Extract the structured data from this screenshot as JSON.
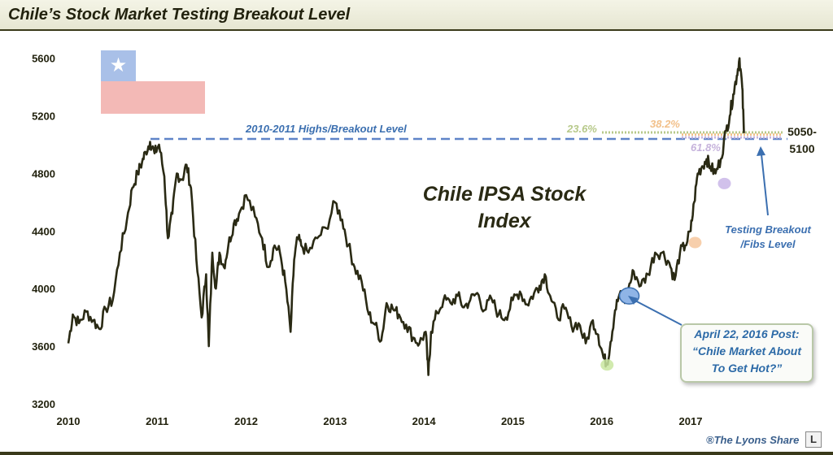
{
  "header": {
    "title": "Chile’s Stock Market Testing Breakout Level"
  },
  "flag": {
    "star_glyph": "★",
    "colors": {
      "blue": "#a9c0e8",
      "white": "#ffffff",
      "red": "#f3b9b6"
    }
  },
  "annotations": {
    "breakout_label": "2010-2011 Highs/Breakout  Level",
    "index_label_line1": "Chile IPSA Stock",
    "index_label_line2": "Index",
    "fib_236": "23.6%",
    "fib_382": "38.2%",
    "fib_618": "61.8%",
    "level_line1": "5050-",
    "level_line2": "5100",
    "testing_line1": "Testing Breakout",
    "testing_line2": "/Fibs Level",
    "callout_line1": "April 22, 2016 Post:",
    "callout_line2": "“Chile Market About",
    "callout_line3": "To Get Hot?”"
  },
  "footer": {
    "credit": "®The Lyons Share",
    "logo": "L"
  },
  "colors": {
    "line": "#2a2a14",
    "breakout_dash": "#5f84c8",
    "fib_236": "#b7c98a",
    "fib_382": "#f2c08a",
    "fib_618": "#c6b3dc",
    "blue_text": "#3b6fb0",
    "title_text": "#22220e"
  },
  "chart_data": {
    "type": "line",
    "title": "Chile IPSA Stock Index",
    "xlabel": "",
    "ylabel": "",
    "xlim": [
      2010.0,
      2017.65
    ],
    "ylim": [
      3200,
      5700
    ],
    "y_ticks": [
      "3200",
      "3600",
      "4000",
      "4400",
      "4800",
      "5200",
      "5600"
    ],
    "x_ticks": [
      "2010",
      "2011",
      "2012",
      "2013",
      "2014",
      "2015",
      "2016",
      "2017"
    ],
    "series": [
      {
        "name": "IPSA",
        "x": [
          2010.0,
          2010.05,
          2010.12,
          2010.2,
          2010.28,
          2010.35,
          2010.42,
          2010.5,
          2010.58,
          2010.66,
          2010.72,
          2010.78,
          2010.83,
          2010.87,
          2010.92,
          2010.97,
          2011.02,
          2011.08,
          2011.12,
          2011.17,
          2011.22,
          2011.28,
          2011.33,
          2011.38,
          2011.44,
          2011.5,
          2011.55,
          2011.58,
          2011.62,
          2011.66,
          2011.7,
          2011.75,
          2011.8,
          2011.86,
          2011.92,
          2012.0,
          2012.1,
          2012.18,
          2012.25,
          2012.32,
          2012.38,
          2012.44,
          2012.5,
          2012.54,
          2012.58,
          2012.62,
          2012.7,
          2012.8,
          2012.9,
          2013.0,
          2013.08,
          2013.15,
          2013.22,
          2013.3,
          2013.38,
          2013.45,
          2013.52,
          2013.58,
          2013.65,
          2013.72,
          2013.8,
          2013.88,
          2013.95,
          2014.02,
          2014.05,
          2014.08,
          2014.15,
          2014.22,
          2014.3,
          2014.38,
          2014.45,
          2014.52,
          2014.6,
          2014.68,
          2014.76,
          2014.84,
          2014.92,
          2015.0,
          2015.08,
          2015.16,
          2015.24,
          2015.3,
          2015.36,
          2015.42,
          2015.5,
          2015.58,
          2015.66,
          2015.74,
          2015.82,
          2015.9,
          2015.96,
          2016.02,
          2016.06,
          2016.1,
          2016.15,
          2016.2,
          2016.26,
          2016.3,
          2016.36,
          2016.44,
          2016.52,
          2016.6,
          2016.68,
          2016.76,
          2016.82,
          2016.88,
          2016.94,
          2017.0,
          2017.04,
          2017.08,
          2017.13,
          2017.18,
          2017.22,
          2017.28,
          2017.34,
          2017.4,
          2017.44,
          2017.48,
          2017.52,
          2017.55,
          2017.58,
          2017.6
        ],
        "values": [
          3620,
          3820,
          3760,
          3840,
          3780,
          3720,
          3860,
          3920,
          4250,
          4480,
          4700,
          4800,
          4880,
          4950,
          5020,
          4940,
          5000,
          4780,
          4350,
          4520,
          4800,
          4760,
          4860,
          4700,
          4200,
          3800,
          4100,
          3600,
          4250,
          4000,
          4250,
          4150,
          4300,
          4450,
          4520,
          4650,
          4500,
          4350,
          4150,
          4300,
          4250,
          4050,
          3700,
          4200,
          4350,
          4300,
          4250,
          4350,
          4420,
          4600,
          4480,
          4300,
          4150,
          4050,
          3820,
          3750,
          3640,
          3900,
          3860,
          3820,
          3750,
          3660,
          3620,
          3700,
          3400,
          3700,
          3830,
          3920,
          3900,
          3950,
          3870,
          3920,
          3970,
          3850,
          3930,
          3820,
          3800,
          3920,
          3980,
          3890,
          3970,
          4020,
          4100,
          3950,
          3800,
          3860,
          3740,
          3760,
          3620,
          3780,
          3680,
          3520,
          3480,
          3630,
          3850,
          3960,
          3900,
          4000,
          4120,
          4020,
          4100,
          4250,
          4250,
          4180,
          4060,
          4250,
          4300,
          4400,
          4600,
          4800,
          4850,
          4900,
          4850,
          4800,
          4900,
          5100,
          5200,
          5350,
          5480,
          5600,
          5400,
          5080
        ]
      }
    ],
    "reference_lines": [
      {
        "name": "2010-2011 Highs/Breakout Level",
        "y": 5040,
        "style": "dashed"
      },
      {
        "name": "23.6%",
        "y": 5085,
        "style": "dotted"
      },
      {
        "name": "38.2%",
        "y": 5070,
        "style": "dotted"
      },
      {
        "name": "61.8%",
        "y": 5050,
        "style": "dotted"
      }
    ],
    "markers": [
      {
        "name": "April 22, 2016 Post",
        "x": 2016.31,
        "y": 3950,
        "color": "#8fb4e6"
      },
      {
        "name": "2016 low",
        "x": 2016.06,
        "y": 3470,
        "color": "#c9e6a0"
      },
      {
        "name": "38.2% touch",
        "x": 2017.05,
        "y": 4320,
        "color": "#f6c79e"
      },
      {
        "name": "61.8% touch",
        "x": 2017.38,
        "y": 4730,
        "color": "#c9b6e8"
      }
    ]
  }
}
